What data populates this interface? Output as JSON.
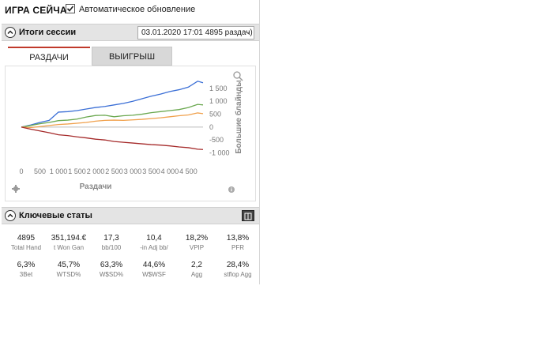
{
  "header": {
    "title": "ИГРА СЕЙЧАС",
    "auto_update_label": "Автоматическое обновление",
    "auto_update_checked": true
  },
  "session_section": {
    "title": "Итоги сессии",
    "selected_session": "03.01.2020 17:01 4895 раздач)"
  },
  "tabs": [
    {
      "label": "РАЗДАЧИ",
      "active": true
    },
    {
      "label": "ВЫИГРЫШ",
      "active": false
    }
  ],
  "chart_data": {
    "type": "line",
    "xlabel": "Раздачи",
    "ylabel": "Большие блайнды",
    "x_ticks": [
      "0",
      "500",
      "1 000",
      "1 500",
      "2 000",
      "2 500",
      "3 000",
      "3 500",
      "4 000",
      "4 500"
    ],
    "y_ticks": [
      "1 500",
      "1 000",
      "500",
      "0",
      "-500",
      "-1 000"
    ],
    "xlim": [
      0,
      4895
    ],
    "ylim": [
      -1200,
      2050
    ],
    "x": [
      0,
      250,
      500,
      750,
      1000,
      1250,
      1500,
      1750,
      2000,
      2250,
      2500,
      2750,
      3000,
      3250,
      3500,
      3750,
      4000,
      4250,
      4500,
      4750,
      4895
    ],
    "series": [
      {
        "color": "#3b6fd6",
        "values": [
          0,
          80,
          180,
          260,
          580,
          600,
          640,
          700,
          760,
          800,
          860,
          920,
          1000,
          1100,
          1200,
          1280,
          1380,
          1450,
          1550,
          1780,
          1720
        ]
      },
      {
        "color": "#6aa84f",
        "values": [
          0,
          60,
          130,
          180,
          250,
          270,
          310,
          390,
          450,
          460,
          400,
          440,
          460,
          500,
          560,
          600,
          640,
          680,
          760,
          880,
          860
        ]
      },
      {
        "color": "#f0a04b",
        "values": [
          0,
          -20,
          20,
          60,
          100,
          120,
          150,
          180,
          230,
          260,
          270,
          260,
          280,
          300,
          330,
          360,
          400,
          440,
          470,
          550,
          520
        ]
      },
      {
        "color": "#a52a2a",
        "values": [
          0,
          -80,
          -150,
          -220,
          -300,
          -330,
          -380,
          -420,
          -470,
          -500,
          -560,
          -590,
          -620,
          -650,
          -680,
          -700,
          -730,
          -770,
          -800,
          -860,
          -870
        ]
      }
    ]
  },
  "key_stats": {
    "title": "Ключевые статы",
    "stats": [
      {
        "value": "4895",
        "label": "Total Hand"
      },
      {
        "value": "351,194.€",
        "label": "t Won Gan"
      },
      {
        "value": "17,3",
        "label": "bb/100"
      },
      {
        "value": "10,4",
        "label": "-in Adj bb/"
      },
      {
        "value": "18,2%",
        "label": "VPIP"
      },
      {
        "value": "13,8%",
        "label": "PFR"
      },
      {
        "value": "6,3%",
        "label": "3Bet"
      },
      {
        "value": "45,7%",
        "label": "WTSD%"
      },
      {
        "value": "63,3%",
        "label": "W$SD%"
      },
      {
        "value": "44,6%",
        "label": "W$WSF"
      },
      {
        "value": "2,2",
        "label": "Agg"
      },
      {
        "value": "28,4%",
        "label": "stflop Agg"
      }
    ]
  }
}
